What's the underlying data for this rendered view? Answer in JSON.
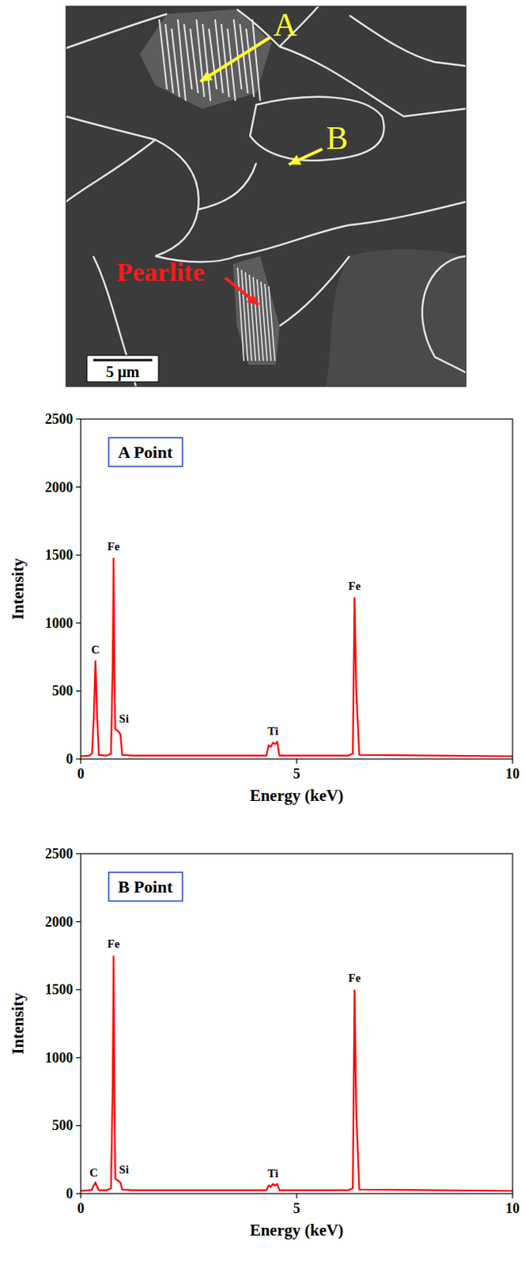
{
  "micrograph": {
    "labels": {
      "a": "A",
      "b": "B",
      "pearlite": "Pearlite"
    },
    "scale_bar": "5 μm"
  },
  "chart_data": [
    {
      "type": "line",
      "title": "A Point",
      "xlabel": "Energy (keV)",
      "ylabel": "Intensity",
      "xlim": [
        0,
        10
      ],
      "ylim": [
        0,
        2500
      ],
      "xticks": [
        0,
        5,
        10
      ],
      "yticks": [
        0,
        500,
        1000,
        1500,
        2000,
        2500
      ],
      "color": "#ff0000",
      "x": [
        0,
        0.2,
        0.26,
        0.3,
        0.34,
        0.38,
        0.42,
        0.6,
        0.7,
        0.74,
        0.76,
        0.78,
        0.8,
        0.84,
        0.88,
        0.92,
        0.96,
        1.2,
        4.3,
        4.35,
        4.4,
        4.45,
        4.5,
        4.55,
        4.6,
        6.2,
        6.3,
        6.34,
        6.38,
        6.45,
        10
      ],
      "values": [
        20,
        25,
        40,
        300,
        725,
        300,
        30,
        25,
        40,
        700,
        1480,
        600,
        220,
        210,
        200,
        180,
        30,
        25,
        25,
        100,
        90,
        120,
        110,
        125,
        25,
        25,
        40,
        1190,
        500,
        30,
        20
      ],
      "annotations": [
        {
          "text": "C",
          "x": 0.34,
          "y": 760
        },
        {
          "text": "Fe",
          "x": 0.76,
          "y": 1520
        },
        {
          "text": "Si",
          "x": 1.0,
          "y": 250
        },
        {
          "text": "Ti",
          "x": 4.45,
          "y": 160
        },
        {
          "text": "Fe",
          "x": 6.34,
          "y": 1230
        }
      ]
    },
    {
      "type": "line",
      "title": "B Point",
      "xlabel": "Energy (keV)",
      "ylabel": "Intensity",
      "xlim": [
        0,
        10
      ],
      "ylim": [
        0,
        2500
      ],
      "xticks": [
        0,
        5,
        10
      ],
      "yticks": [
        0,
        500,
        1000,
        1500,
        2000,
        2500
      ],
      "color": "#ff0000",
      "x": [
        0,
        0.2,
        0.26,
        0.3,
        0.34,
        0.38,
        0.42,
        0.6,
        0.7,
        0.74,
        0.76,
        0.78,
        0.8,
        0.84,
        0.88,
        0.92,
        0.96,
        1.2,
        4.3,
        4.35,
        4.4,
        4.45,
        4.5,
        4.55,
        4.6,
        6.2,
        6.3,
        6.34,
        6.38,
        6.45,
        10
      ],
      "values": [
        20,
        25,
        30,
        60,
        80,
        50,
        25,
        25,
        40,
        800,
        1750,
        700,
        110,
        100,
        90,
        80,
        30,
        25,
        25,
        60,
        50,
        70,
        60,
        70,
        25,
        25,
        40,
        1500,
        600,
        30,
        20
      ],
      "annotations": [
        {
          "text": "C",
          "x": 0.3,
          "y": 110
        },
        {
          "text": "Fe",
          "x": 0.76,
          "y": 1790
        },
        {
          "text": "Si",
          "x": 1.0,
          "y": 130
        },
        {
          "text": "Ti",
          "x": 4.45,
          "y": 100
        },
        {
          "text": "Fe",
          "x": 6.34,
          "y": 1540
        }
      ]
    }
  ]
}
